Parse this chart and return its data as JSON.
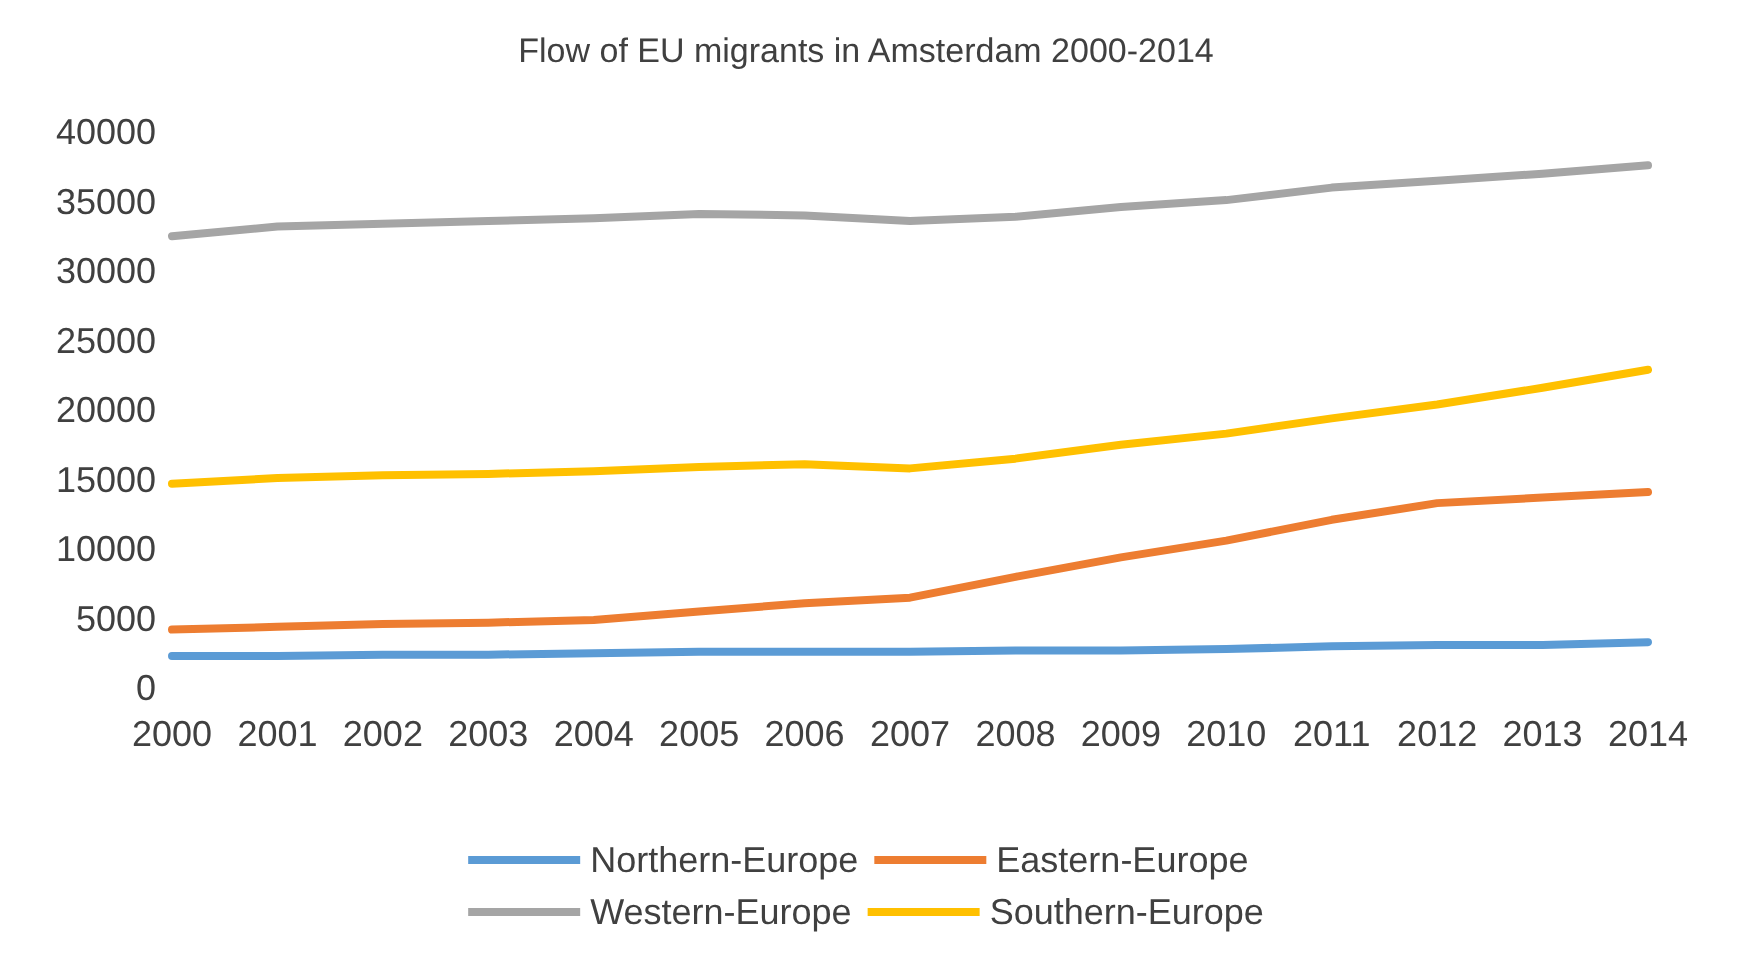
{
  "chart_data": {
    "type": "line",
    "title": "Flow of EU migrants in Amsterdam 2000-2014",
    "categories": [
      "2000",
      "2001",
      "2002",
      "2003",
      "2004",
      "2005",
      "2006",
      "2007",
      "2008",
      "2009",
      "2010",
      "2011",
      "2012",
      "2013",
      "2014"
    ],
    "series": [
      {
        "name": "Northern-Europe",
        "color": "#5b9bd5",
        "values": [
          2300,
          2300,
          2400,
          2400,
          2500,
          2600,
          2600,
          2600,
          2700,
          2700,
          2800,
          3000,
          3100,
          3100,
          3300
        ]
      },
      {
        "name": "Eastern-Europe",
        "color": "#ed7d31",
        "values": [
          4200,
          4400,
          4600,
          4700,
          4900,
          5500,
          6100,
          6500,
          8000,
          9400,
          10600,
          12100,
          13300,
          13700,
          14100
        ]
      },
      {
        "name": "Western-Europe",
        "color": "#a5a5a5",
        "values": [
          32500,
          33200,
          33400,
          33600,
          33800,
          34100,
          34000,
          33600,
          33900,
          34600,
          35100,
          36000,
          36500,
          37000,
          37600
        ]
      },
      {
        "name": "Southern-Europe",
        "color": "#ffc000",
        "values": [
          14700,
          15100,
          15300,
          15400,
          15600,
          15900,
          16100,
          15800,
          16500,
          17500,
          18300,
          19400,
          20400,
          21600,
          22900
        ]
      }
    ],
    "ylim": [
      0,
      40000
    ],
    "yticks": [
      0,
      5000,
      10000,
      15000,
      20000,
      25000,
      30000,
      35000,
      40000
    ],
    "grid": false,
    "legend": "bottom",
    "marker": "none",
    "line_style": "solid"
  }
}
